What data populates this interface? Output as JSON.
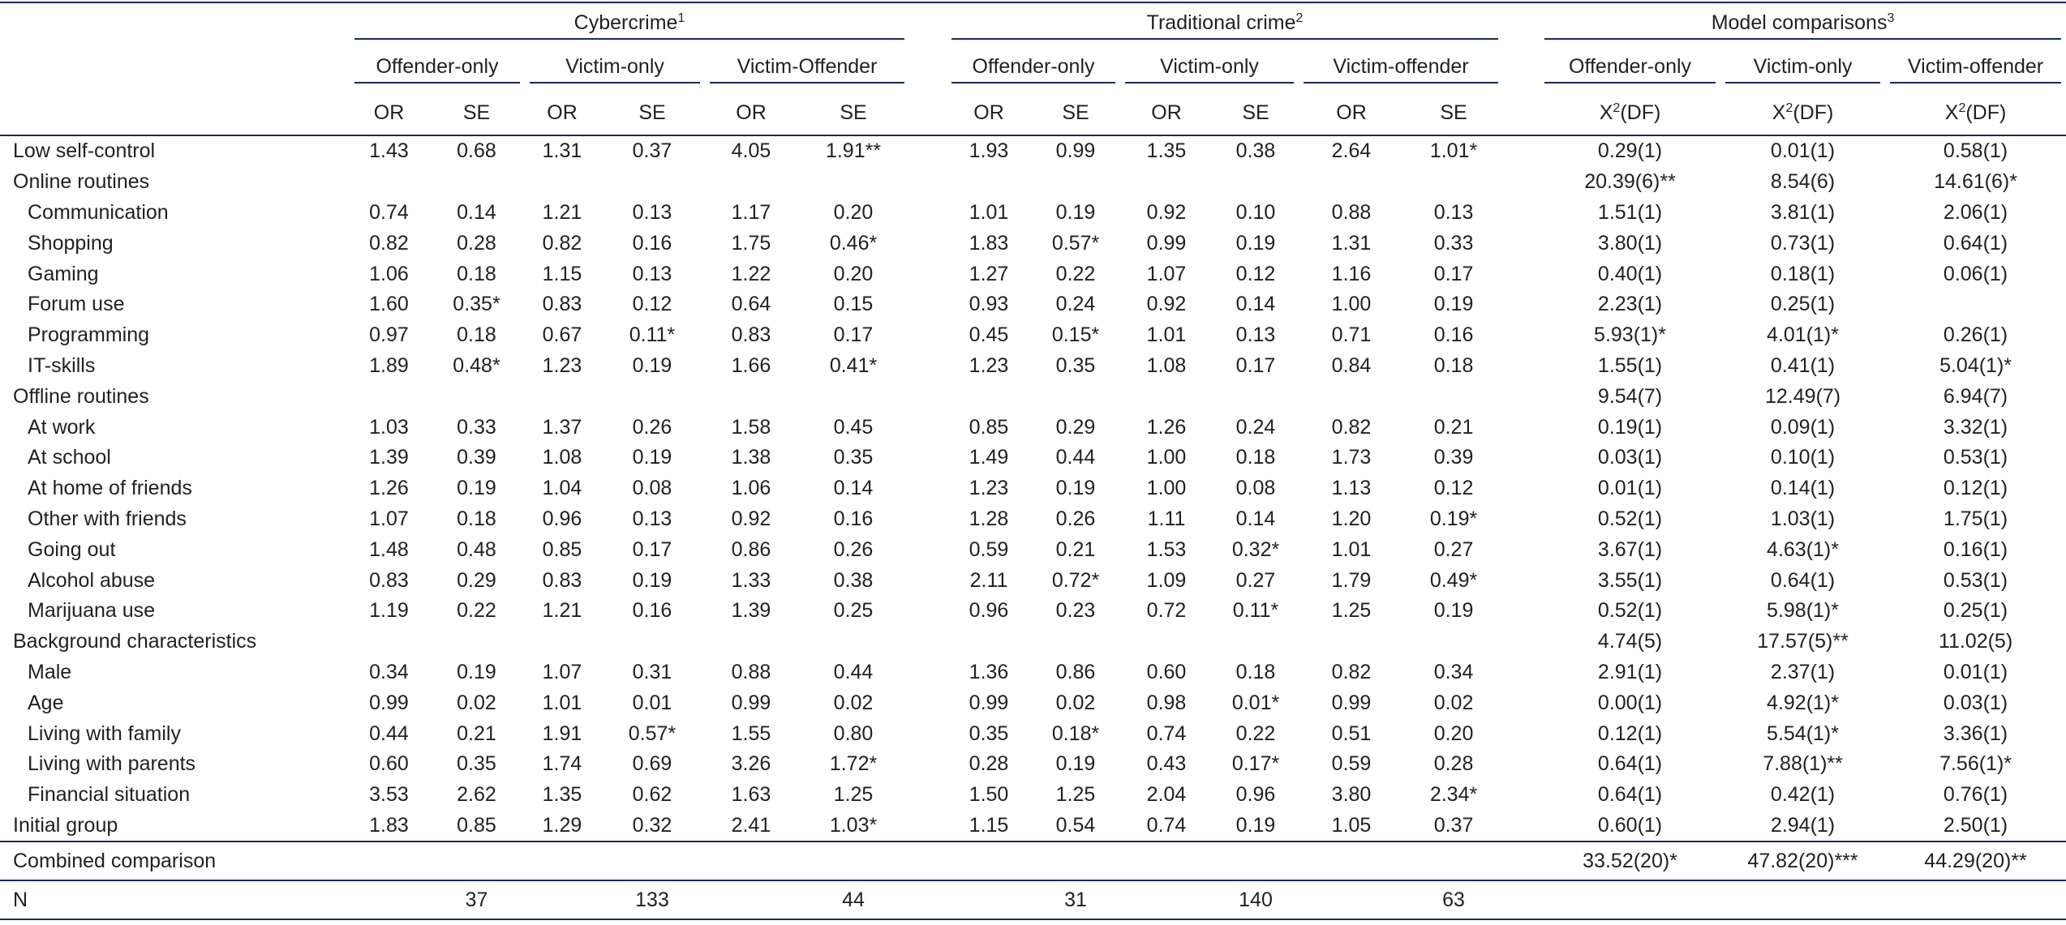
{
  "table": {
    "groups": [
      {
        "label": "Cybercrime",
        "sup": "1"
      },
      {
        "label": "Traditional crime",
        "sup": "2"
      },
      {
        "label": "Model comparisons",
        "sup": "3"
      }
    ],
    "subgroups": [
      "Offender-only",
      "Victim-only",
      "Victim-Offender",
      "Offender-only",
      "Victim-only",
      "Victim-offender",
      "Offender-only",
      "Victim-only",
      "Victim-offender"
    ],
    "columns": [
      "OR",
      "SE",
      "OR",
      "SE",
      "OR",
      "SE",
      "OR",
      "SE",
      "OR",
      "SE",
      "OR",
      "SE",
      {
        "base": "X",
        "sup": "2",
        "rest": "(DF)"
      },
      {
        "base": "X",
        "sup": "2",
        "rest": "(DF)"
      },
      {
        "base": "X",
        "sup": "2",
        "rest": "(DF)"
      }
    ],
    "rows": [
      {
        "label": "Low self-control",
        "indent": false,
        "cells": [
          "1.43",
          "0.68",
          "1.31",
          "0.37",
          "4.05",
          "1.91**",
          "1.93",
          "0.99",
          "1.35",
          "0.38",
          "2.64",
          "1.01*",
          "0.29(1)",
          "0.01(1)",
          "0.58(1)"
        ]
      },
      {
        "label": "Online routines",
        "indent": false,
        "cells": [
          null,
          null,
          null,
          null,
          null,
          null,
          null,
          null,
          null,
          null,
          null,
          null,
          "20.39(6)**",
          "8.54(6)",
          "14.61(6)*"
        ]
      },
      {
        "label": "Communication",
        "indent": true,
        "cells": [
          "0.74",
          "0.14",
          "1.21",
          "0.13",
          "1.17",
          "0.20",
          "1.01",
          "0.19",
          "0.92",
          "0.10",
          "0.88",
          "0.13",
          "1.51(1)",
          "3.81(1)",
          "2.06(1)"
        ]
      },
      {
        "label": "Shopping",
        "indent": true,
        "cells": [
          "0.82",
          "0.28",
          "0.82",
          "0.16",
          "1.75",
          "0.46*",
          "1.83",
          "0.57*",
          "0.99",
          "0.19",
          "1.31",
          "0.33",
          "3.80(1)",
          "0.73(1)",
          "0.64(1)"
        ]
      },
      {
        "label": "Gaming",
        "indent": true,
        "cells": [
          "1.06",
          "0.18",
          "1.15",
          "0.13",
          "1.22",
          "0.20",
          "1.27",
          "0.22",
          "1.07",
          "0.12",
          "1.16",
          "0.17",
          "0.40(1)",
          "0.18(1)",
          "0.06(1)"
        ]
      },
      {
        "label": "Forum use",
        "indent": true,
        "cells": [
          "1.60",
          "0.35*",
          "0.83",
          "0.12",
          "0.64",
          "0.15",
          "0.93",
          "0.24",
          "0.92",
          "0.14",
          "1.00",
          "0.19",
          "2.23(1)",
          "0.25(1)",
          null
        ]
      },
      {
        "label": "Programming",
        "indent": true,
        "cells": [
          "0.97",
          "0.18",
          "0.67",
          "0.11*",
          "0.83",
          "0.17",
          "0.45",
          "0.15*",
          "1.01",
          "0.13",
          "0.71",
          "0.16",
          "5.93(1)*",
          "4.01(1)*",
          "0.26(1)"
        ]
      },
      {
        "label": "IT-skills",
        "indent": true,
        "cells": [
          "1.89",
          "0.48*",
          "1.23",
          "0.19",
          "1.66",
          "0.41*",
          "1.23",
          "0.35",
          "1.08",
          "0.17",
          "0.84",
          "0.18",
          "1.55(1)",
          "0.41(1)",
          "5.04(1)*"
        ]
      },
      {
        "label": "Offline routines",
        "indent": false,
        "cells": [
          null,
          null,
          null,
          null,
          null,
          null,
          null,
          null,
          null,
          null,
          null,
          null,
          "9.54(7)",
          "12.49(7)",
          "6.94(7)"
        ]
      },
      {
        "label": "At work",
        "indent": true,
        "cells": [
          "1.03",
          "0.33",
          "1.37",
          "0.26",
          "1.58",
          "0.45",
          "0.85",
          "0.29",
          "1.26",
          "0.24",
          "0.82",
          "0.21",
          "0.19(1)",
          "0.09(1)",
          "3.32(1)"
        ]
      },
      {
        "label": "At school",
        "indent": true,
        "cells": [
          "1.39",
          "0.39",
          "1.08",
          "0.19",
          "1.38",
          "0.35",
          "1.49",
          "0.44",
          "1.00",
          "0.18",
          "1.73",
          "0.39",
          "0.03(1)",
          "0.10(1)",
          "0.53(1)"
        ]
      },
      {
        "label": "At home of friends",
        "indent": true,
        "cells": [
          "1.26",
          "0.19",
          "1.04",
          "0.08",
          "1.06",
          "0.14",
          "1.23",
          "0.19",
          "1.00",
          "0.08",
          "1.13",
          "0.12",
          "0.01(1)",
          "0.14(1)",
          "0.12(1)"
        ]
      },
      {
        "label": "Other with friends",
        "indent": true,
        "cells": [
          "1.07",
          "0.18",
          "0.96",
          "0.13",
          "0.92",
          "0.16",
          "1.28",
          "0.26",
          "1.11",
          "0.14",
          "1.20",
          "0.19*",
          "0.52(1)",
          "1.03(1)",
          "1.75(1)"
        ]
      },
      {
        "label": "Going out",
        "indent": true,
        "cells": [
          "1.48",
          "0.48",
          "0.85",
          "0.17",
          "0.86",
          "0.26",
          "0.59",
          "0.21",
          "1.53",
          "0.32*",
          "1.01",
          "0.27",
          "3.67(1)",
          "4.63(1)*",
          "0.16(1)"
        ]
      },
      {
        "label": "Alcohol abuse",
        "indent": true,
        "cells": [
          "0.83",
          "0.29",
          "0.83",
          "0.19",
          "1.33",
          "0.38",
          "2.11",
          "0.72*",
          "1.09",
          "0.27",
          "1.79",
          "0.49*",
          "3.55(1)",
          "0.64(1)",
          "0.53(1)"
        ]
      },
      {
        "label": "Marijuana use",
        "indent": true,
        "cells": [
          "1.19",
          "0.22",
          "1.21",
          "0.16",
          "1.39",
          "0.25",
          "0.96",
          "0.23",
          "0.72",
          "0.11*",
          "1.25",
          "0.19",
          "0.52(1)",
          "5.98(1)*",
          "0.25(1)"
        ]
      },
      {
        "label": "Background characteristics",
        "indent": false,
        "cells": [
          null,
          null,
          null,
          null,
          null,
          null,
          null,
          null,
          null,
          null,
          null,
          null,
          "4.74(5)",
          "17.57(5)**",
          "11.02(5)"
        ]
      },
      {
        "label": "Male",
        "indent": true,
        "cells": [
          "0.34",
          "0.19",
          "1.07",
          "0.31",
          "0.88",
          "0.44",
          "1.36",
          "0.86",
          "0.60",
          "0.18",
          "0.82",
          "0.34",
          "2.91(1)",
          "2.37(1)",
          "0.01(1)"
        ]
      },
      {
        "label": "Age",
        "indent": true,
        "cells": [
          "0.99",
          "0.02",
          "1.01",
          "0.01",
          "0.99",
          "0.02",
          "0.99",
          "0.02",
          "0.98",
          "0.01*",
          "0.99",
          "0.02",
          "0.00(1)",
          "4.92(1)*",
          "0.03(1)"
        ]
      },
      {
        "label": "Living with family",
        "indent": true,
        "cells": [
          "0.44",
          "0.21",
          "1.91",
          "0.57*",
          "1.55",
          "0.80",
          "0.35",
          "0.18*",
          "0.74",
          "0.22",
          "0.51",
          "0.20",
          "0.12(1)",
          "5.54(1)*",
          "3.36(1)"
        ]
      },
      {
        "label": "Living with parents",
        "indent": true,
        "cells": [
          "0.60",
          "0.35",
          "1.74",
          "0.69",
          "3.26",
          "1.72*",
          "0.28",
          "0.19",
          "0.43",
          "0.17*",
          "0.59",
          "0.28",
          "0.64(1)",
          "7.88(1)**",
          "7.56(1)*"
        ]
      },
      {
        "label": "Financial situation",
        "indent": true,
        "cells": [
          "3.53",
          "2.62",
          "1.35",
          "0.62",
          "1.63",
          "1.25",
          "1.50",
          "1.25",
          "2.04",
          "0.96",
          "3.80",
          "2.34*",
          "0.64(1)",
          "0.42(1)",
          "0.76(1)"
        ]
      },
      {
        "label": "Initial group",
        "indent": false,
        "cells": [
          "1.83",
          "0.85",
          "1.29",
          "0.32",
          "2.41",
          "1.03*",
          "1.15",
          "0.54",
          "0.74",
          "0.19",
          "1.05",
          "0.37",
          "0.60(1)",
          "2.94(1)",
          "2.50(1)"
        ]
      }
    ],
    "combined": {
      "label": "Combined comparison",
      "cells": [
        null,
        null,
        null,
        null,
        null,
        null,
        null,
        null,
        null,
        null,
        null,
        null,
        "33.52(20)*",
        "47.82(20)***",
        "44.29(20)**"
      ]
    },
    "n": {
      "label": "N",
      "cells": [
        null,
        37,
        null,
        133,
        null,
        44,
        null,
        31,
        null,
        140,
        null,
        63,
        null,
        null,
        null
      ]
    }
  }
}
